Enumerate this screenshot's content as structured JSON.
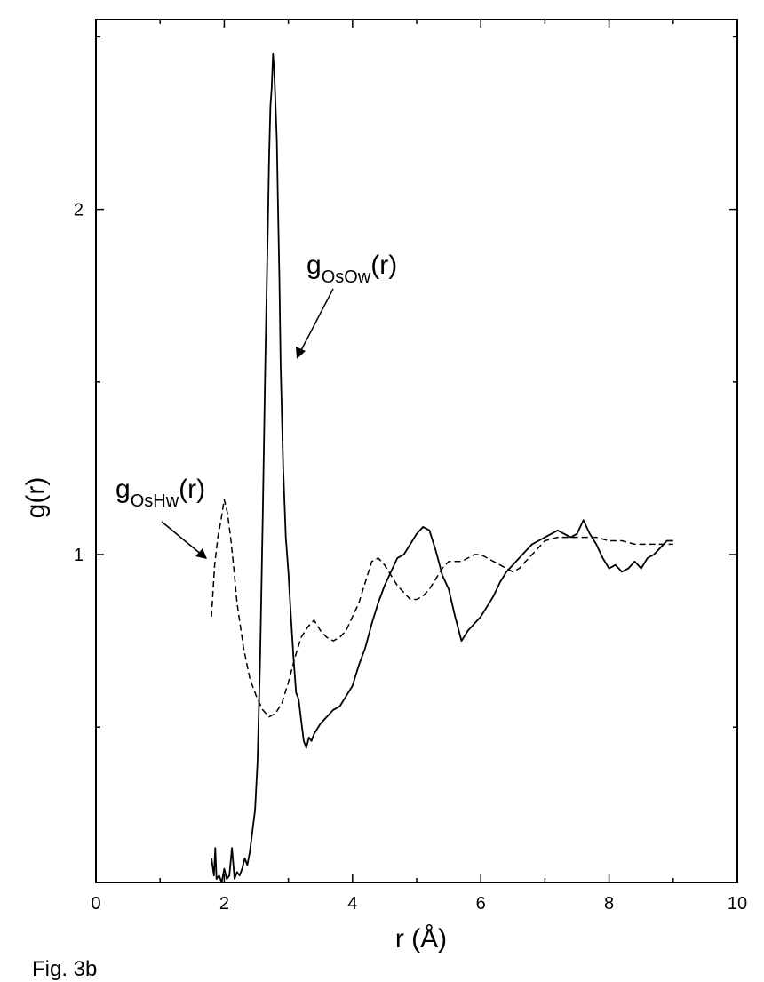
{
  "chart_data": {
    "type": "line",
    "xlabel": "r (Å)",
    "ylabel": "g(r)",
    "xlim": [
      0,
      10
    ],
    "ylim": [
      0.05,
      2.55
    ],
    "x_ticks": [
      0,
      2,
      4,
      6,
      8,
      10
    ],
    "x_tick_labels": [
      "0",
      "2",
      "4",
      "6",
      "8",
      "10"
    ],
    "y_ticks": [
      1,
      2
    ],
    "y_tick_labels": [
      "1",
      "2"
    ],
    "grid": false,
    "legend": "none",
    "series": [
      {
        "name": "gOsOw(r)",
        "style": "solid",
        "color": "#000000",
        "x": [
          1.8,
          1.84,
          1.86,
          1.88,
          1.92,
          1.96,
          2.0,
          2.04,
          2.08,
          2.12,
          2.16,
          2.2,
          2.24,
          2.28,
          2.32,
          2.36,
          2.4,
          2.44,
          2.48,
          2.52,
          2.56,
          2.6,
          2.64,
          2.68,
          2.7,
          2.72,
          2.74,
          2.76,
          2.78,
          2.8,
          2.82,
          2.84,
          2.86,
          2.88,
          2.92,
          2.96,
          3.0,
          3.04,
          3.08,
          3.12,
          3.16,
          3.2,
          3.24,
          3.28,
          3.32,
          3.36,
          3.4,
          3.5,
          3.6,
          3.7,
          3.8,
          3.9,
          4.0,
          4.1,
          4.2,
          4.3,
          4.4,
          4.5,
          4.6,
          4.7,
          4.8,
          4.9,
          5.0,
          5.1,
          5.2,
          5.3,
          5.4,
          5.5,
          5.6,
          5.7,
          5.8,
          5.9,
          6.0,
          6.1,
          6.2,
          6.3,
          6.4,
          6.5,
          6.6,
          6.7,
          6.8,
          6.9,
          7.0,
          7.2,
          7.4,
          7.5,
          7.6,
          7.7,
          7.8,
          7.9,
          8.0,
          8.1,
          8.2,
          8.3,
          8.4,
          8.5,
          8.6,
          8.7,
          8.8,
          8.9,
          9.0
        ],
        "y": [
          0.12,
          0.07,
          0.15,
          0.06,
          0.07,
          0.05,
          0.09,
          0.06,
          0.07,
          0.15,
          0.06,
          0.08,
          0.07,
          0.09,
          0.12,
          0.1,
          0.14,
          0.2,
          0.26,
          0.4,
          0.7,
          1.1,
          1.55,
          1.95,
          2.15,
          2.3,
          2.35,
          2.45,
          2.4,
          2.3,
          2.2,
          2.0,
          1.8,
          1.55,
          1.25,
          1.05,
          0.95,
          0.82,
          0.7,
          0.6,
          0.58,
          0.52,
          0.46,
          0.44,
          0.47,
          0.46,
          0.48,
          0.51,
          0.53,
          0.55,
          0.56,
          0.59,
          0.62,
          0.68,
          0.73,
          0.8,
          0.86,
          0.91,
          0.95,
          0.99,
          1.0,
          1.03,
          1.06,
          1.08,
          1.07,
          1.01,
          0.94,
          0.9,
          0.82,
          0.75,
          0.78,
          0.8,
          0.82,
          0.85,
          0.88,
          0.92,
          0.95,
          0.97,
          0.99,
          1.01,
          1.03,
          1.04,
          1.05,
          1.07,
          1.05,
          1.06,
          1.1,
          1.06,
          1.03,
          0.99,
          0.96,
          0.97,
          0.95,
          0.96,
          0.98,
          0.96,
          0.99,
          1.0,
          1.02,
          1.04,
          1.04
        ]
      },
      {
        "name": "gOsHw(r)",
        "style": "dashed",
        "color": "#000000",
        "x": [
          1.8,
          1.85,
          1.9,
          1.95,
          2.0,
          2.05,
          2.1,
          2.15,
          2.2,
          2.3,
          2.4,
          2.5,
          2.6,
          2.7,
          2.8,
          2.9,
          3.0,
          3.1,
          3.2,
          3.3,
          3.4,
          3.5,
          3.6,
          3.7,
          3.8,
          3.9,
          4.0,
          4.1,
          4.2,
          4.3,
          4.4,
          4.5,
          4.6,
          4.7,
          4.8,
          4.9,
          5.0,
          5.1,
          5.2,
          5.3,
          5.4,
          5.5,
          5.6,
          5.7,
          5.8,
          5.9,
          6.0,
          6.1,
          6.2,
          6.3,
          6.4,
          6.5,
          6.6,
          6.7,
          6.8,
          6.9,
          7.0,
          7.2,
          7.4,
          7.6,
          7.8,
          8.0,
          8.2,
          8.4,
          8.6,
          8.8,
          9.0
        ],
        "y": [
          0.82,
          0.97,
          1.05,
          1.1,
          1.16,
          1.12,
          1.05,
          0.96,
          0.86,
          0.73,
          0.64,
          0.59,
          0.55,
          0.53,
          0.54,
          0.57,
          0.63,
          0.7,
          0.76,
          0.79,
          0.81,
          0.78,
          0.76,
          0.75,
          0.76,
          0.78,
          0.82,
          0.86,
          0.92,
          0.98,
          0.99,
          0.97,
          0.94,
          0.91,
          0.89,
          0.87,
          0.87,
          0.88,
          0.9,
          0.93,
          0.96,
          0.98,
          0.98,
          0.98,
          0.99,
          1.0,
          1.0,
          0.99,
          0.98,
          0.97,
          0.96,
          0.95,
          0.96,
          0.98,
          1.0,
          1.02,
          1.04,
          1.05,
          1.05,
          1.05,
          1.05,
          1.04,
          1.04,
          1.03,
          1.03,
          1.03,
          1.03
        ]
      }
    ],
    "annotations": [
      {
        "id": "oso",
        "base": "g",
        "sub": "OsOw",
        "tail": "(r)"
      },
      {
        "id": "osh",
        "base": "g",
        "sub": "OsHw",
        "tail": "(r)"
      }
    ],
    "figure_label": "Fig. 3b"
  }
}
